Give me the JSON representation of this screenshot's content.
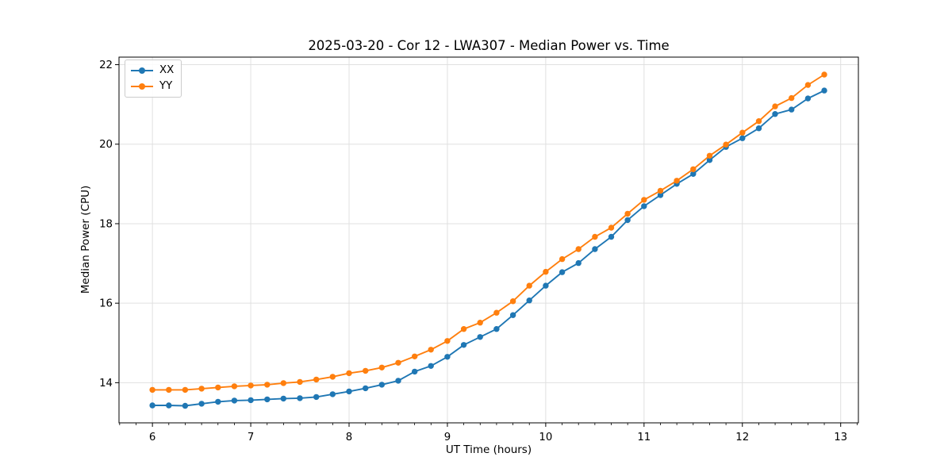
{
  "chart_data": {
    "type": "line",
    "title": "2025-03-20 - Cor 12 - LWA307 - Median Power vs. Time",
    "xlabel": "UT Time (hours)",
    "ylabel": "Median Power (CPU)",
    "xlim": [
      5.66,
      13.18
    ],
    "ylim": [
      12.99,
      22.19
    ],
    "x_major_ticks": [
      6,
      7,
      8,
      9,
      10,
      11,
      12,
      13
    ],
    "y_major_ticks": [
      14,
      16,
      18,
      20,
      22
    ],
    "x_minor_interval_hours": 0.1667,
    "grid": "major",
    "legend_position": "upper-left",
    "background": "#ffffff",
    "axis_color": "#000000",
    "grid_color": "#e0e0e0",
    "x": [
      6.0,
      6.167,
      6.333,
      6.5,
      6.667,
      6.833,
      7.0,
      7.167,
      7.333,
      7.5,
      7.667,
      7.833,
      8.0,
      8.167,
      8.333,
      8.5,
      8.667,
      8.833,
      9.0,
      9.167,
      9.333,
      9.5,
      9.667,
      9.833,
      10.0,
      10.167,
      10.333,
      10.5,
      10.667,
      10.833,
      11.0,
      11.167,
      11.333,
      11.5,
      11.667,
      11.833,
      12.0,
      12.167,
      12.333,
      12.5,
      12.667,
      12.833
    ],
    "series": [
      {
        "name": "XX",
        "color": "#1f77b4",
        "values": [
          13.43,
          13.43,
          13.42,
          13.47,
          13.52,
          13.55,
          13.56,
          13.58,
          13.6,
          13.61,
          13.64,
          13.71,
          13.78,
          13.86,
          13.95,
          14.05,
          14.28,
          14.42,
          14.65,
          14.95,
          15.15,
          15.35,
          15.7,
          16.07,
          16.44,
          16.78,
          17.01,
          17.36,
          17.67,
          18.09,
          18.44,
          18.72,
          19.0,
          19.25,
          19.6,
          19.93,
          20.15,
          20.4,
          20.76,
          20.87,
          21.15,
          21.35
        ]
      },
      {
        "name": "YY",
        "color": "#ff7f0e",
        "values": [
          13.82,
          13.82,
          13.82,
          13.85,
          13.88,
          13.91,
          13.93,
          13.95,
          13.99,
          14.02,
          14.08,
          14.15,
          14.24,
          14.3,
          14.38,
          14.5,
          14.66,
          14.83,
          15.05,
          15.35,
          15.51,
          15.76,
          16.05,
          16.44,
          16.79,
          17.11,
          17.36,
          17.67,
          17.9,
          18.25,
          18.6,
          18.83,
          19.08,
          19.37,
          19.71,
          19.99,
          20.29,
          20.58,
          20.95,
          21.16,
          21.49,
          21.75
        ]
      }
    ]
  }
}
